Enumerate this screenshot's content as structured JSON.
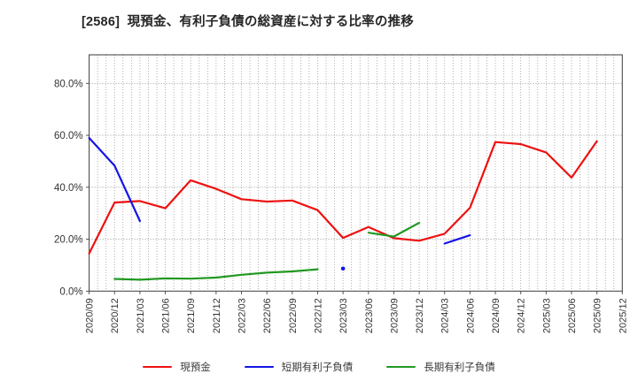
{
  "chart_data": {
    "type": "line",
    "title": "[2586]  現預金、有利子負債の総資産に対する比率の推移",
    "xlabel": "",
    "ylabel": "",
    "ylim": [
      0,
      91
    ],
    "yticks": [
      0,
      20,
      40,
      60,
      80
    ],
    "ytick_labels": [
      "0.0%",
      "20.0%",
      "40.0%",
      "60.0%",
      "80.0%"
    ],
    "grid": "dotted; vertical minor gridline every month, horizontal gridline every 20%",
    "legend_position": "bottom-center",
    "x_labels": [
      "2020/09",
      "2020/12",
      "2021/03",
      "2021/06",
      "2021/09",
      "2021/12",
      "2022/03",
      "2022/06",
      "2022/09",
      "2022/12",
      "2023/03",
      "2023/06",
      "2023/09",
      "2023/12",
      "2024/03",
      "2024/06",
      "2024/09",
      "2024/12",
      "2025/03",
      "2025/06",
      "2025/09",
      "2025/12"
    ],
    "series": [
      {
        "name": "現預金",
        "color": "#ee1111",
        "values": [
          14.5,
          34.1,
          34.7,
          31.9,
          42.7,
          39.4,
          35.4,
          34.5,
          34.9,
          31.2,
          20.5,
          24.7,
          20.4,
          19.4,
          22.1,
          32.1,
          57.4,
          56.6,
          53.4,
          43.7,
          57.7,
          null
        ]
      },
      {
        "name": "短期有利子負債",
        "color": "#1414e6",
        "values": [
          59.0,
          48.3,
          27.0,
          null,
          null,
          null,
          null,
          null,
          null,
          null,
          8.7,
          null,
          null,
          null,
          18.3,
          21.5,
          null,
          null,
          null,
          null,
          null,
          null
        ]
      },
      {
        "name": "長期有利子負債",
        "color": "#229922",
        "values": [
          null,
          4.7,
          4.4,
          4.9,
          4.8,
          5.2,
          6.3,
          7.1,
          7.6,
          8.4,
          null,
          22.5,
          21.0,
          26.3,
          null,
          null,
          null,
          null,
          null,
          null,
          null,
          null
        ]
      }
    ]
  }
}
